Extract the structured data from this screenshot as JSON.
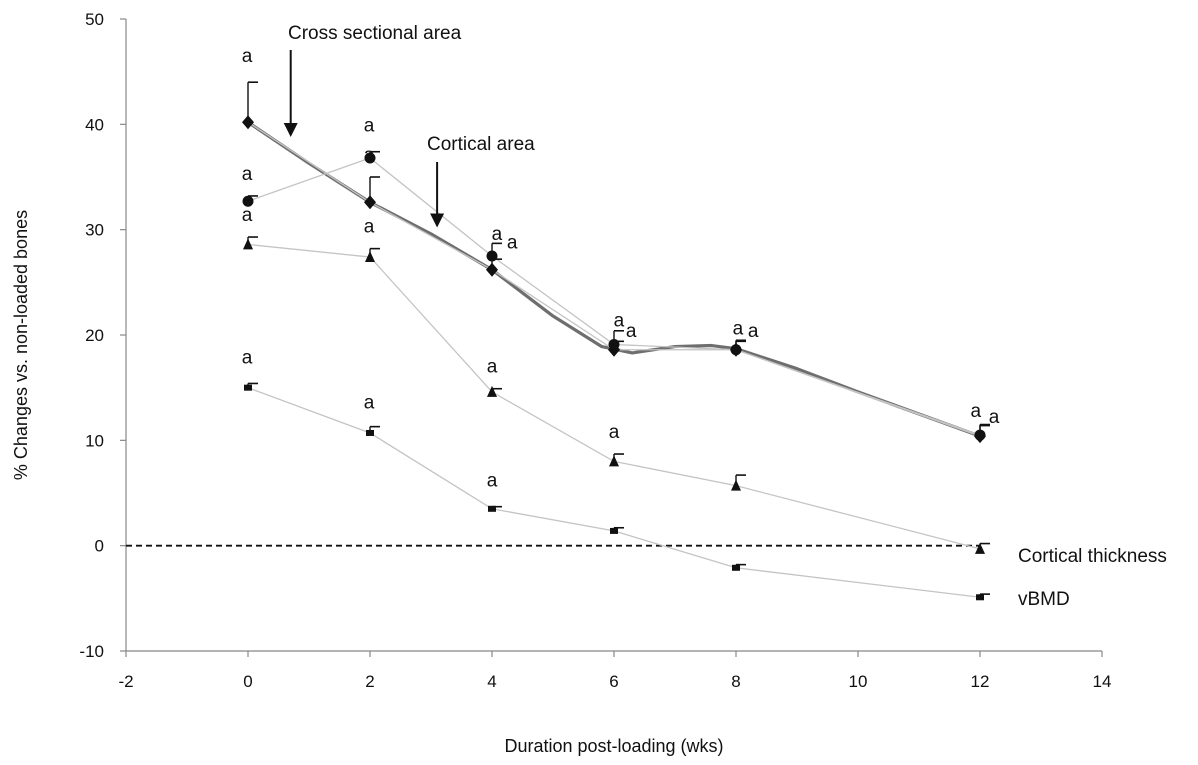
{
  "chart_data": {
    "type": "line",
    "title": "",
    "xlabel": "Duration post-loading (wks)",
    "ylabel": "% Changes vs. non-loaded bones",
    "xlim": [
      -2,
      14
    ],
    "ylim": [
      -10,
      50
    ],
    "x_ticks": [
      -2,
      0,
      2,
      4,
      6,
      8,
      10,
      12,
      14
    ],
    "y_ticks": [
      -10,
      0,
      10,
      20,
      30,
      40,
      50
    ],
    "reference_line": {
      "y": 0,
      "style": "dashed"
    },
    "series": [
      {
        "name": "Cross sectional area",
        "marker": "diamond",
        "x": [
          0,
          2,
          4,
          6,
          8,
          12
        ],
        "y": [
          40.2,
          32.6,
          26.2,
          18.6,
          18.6,
          10.4
        ],
        "error_plus": [
          3.8,
          2.4,
          1.0,
          0.8,
          0.8,
          1.0
        ],
        "sig_labels": [
          "a",
          "a",
          "a",
          "a",
          "a",
          "a"
        ],
        "trend": {
          "color": "#6e6e6e",
          "x": [
            0,
            1,
            2,
            3,
            4,
            5,
            5.8,
            6.3,
            7,
            7.6,
            8,
            9,
            10,
            11,
            12
          ],
          "y": [
            40.2,
            36.3,
            32.6,
            29.6,
            26.2,
            21.8,
            18.9,
            18.3,
            18.9,
            19.0,
            18.7,
            16.8,
            14.6,
            12.5,
            10.4
          ]
        }
      },
      {
        "name": "Cortical area",
        "marker": "circle",
        "x": [
          0,
          2,
          4,
          6,
          8,
          12
        ],
        "y": [
          32.7,
          36.8,
          27.5,
          19.1,
          18.6,
          10.5
        ],
        "error_plus": [
          0.5,
          0.6,
          1.2,
          1.3,
          0.9,
          1.0
        ],
        "sig_labels": [
          "a",
          "a",
          "a",
          "a",
          "a",
          "a"
        ]
      },
      {
        "name": "Cortical thickness",
        "marker": "triangle",
        "x": [
          0,
          2,
          4,
          6,
          8,
          12
        ],
        "y": [
          28.6,
          27.4,
          14.6,
          8.0,
          5.7,
          -0.3
        ],
        "error_plus": [
          0.7,
          0.8,
          0.3,
          0.7,
          1.0,
          0.5
        ],
        "sig_labels": [
          "a",
          "a",
          "a",
          "a",
          "",
          ""
        ]
      },
      {
        "name": "vBMD",
        "marker": "square",
        "x": [
          0,
          2,
          4,
          6,
          8,
          12
        ],
        "y": [
          15.0,
          10.7,
          3.5,
          1.4,
          -2.1,
          -4.9
        ],
        "error_plus": [
          0.4,
          0.6,
          0.2,
          0.3,
          0.3,
          0.3
        ],
        "sig_labels": [
          "a",
          "a",
          "a",
          "",
          "",
          ""
        ]
      }
    ],
    "annotations": [
      {
        "text": "Cross sectional area",
        "arrow_to": {
          "x": 0.7,
          "y": 38.8
        }
      },
      {
        "text": "Cortical area",
        "arrow_to": {
          "x": 3.1,
          "y": 30.2
        }
      },
      {
        "text": "Cortical thickness"
      },
      {
        "text": "vBMD"
      }
    ]
  }
}
